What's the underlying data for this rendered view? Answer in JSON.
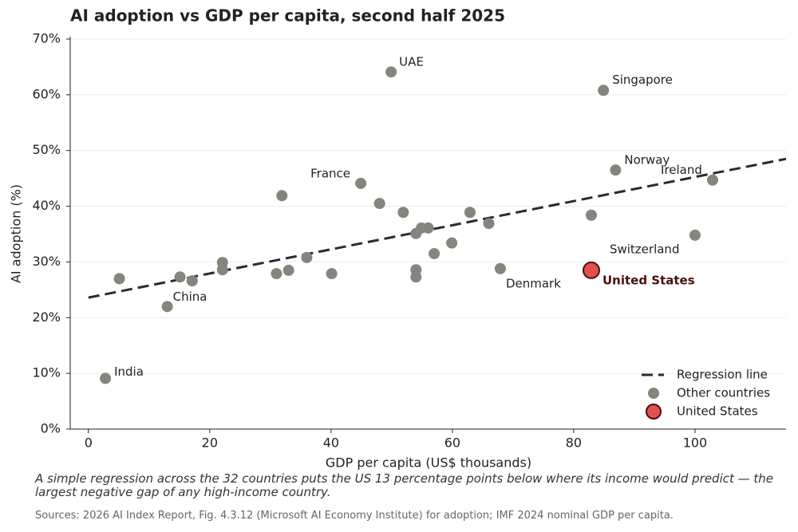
{
  "chart_data": {
    "type": "scatter",
    "title": "AI adoption vs GDP per capita, second half 2025",
    "x_label": "GDP per capita (US$ thousands)",
    "y_label": "AI adoption (%)",
    "xlim": [
      -3,
      115
    ],
    "ylim": [
      0,
      70
    ],
    "xticks": [
      0,
      20,
      40,
      60,
      80,
      100
    ],
    "yticks": [
      {
        "value": 0,
        "label": "0%"
      },
      {
        "value": 10,
        "label": "10%"
      },
      {
        "value": 20,
        "label": "20%"
      },
      {
        "value": 30,
        "label": "30%"
      },
      {
        "value": 40,
        "label": "40%"
      },
      {
        "value": 50,
        "label": "50%"
      },
      {
        "value": 60,
        "label": "60%"
      },
      {
        "value": 70,
        "label": "70%"
      }
    ],
    "grid": true,
    "legend": "lower right",
    "series": [
      {
        "name": "Regression line",
        "type": "line",
        "style": "dashed",
        "color": "#2b2b2b",
        "x": [
          0,
          115
        ],
        "y": [
          23.6,
          48.5
        ]
      },
      {
        "name": "Other countries",
        "color": "#85847d",
        "x": [
          2.8,
          5.1,
          13.0,
          15.1,
          17.1,
          22.1,
          22.1,
          31.0,
          33.0,
          31.9,
          36.0,
          40.1,
          44.9,
          48.0,
          49.9,
          51.9,
          54.0,
          54.9,
          56.0,
          54.0,
          54.0,
          57.0,
          59.9,
          62.9,
          66.0,
          67.9,
          82.9,
          84.9,
          86.9,
          100,
          102.9
        ],
        "y": [
          9.1,
          27.0,
          22.0,
          27.3,
          26.6,
          29.9,
          28.6,
          27.9,
          28.5,
          41.9,
          30.8,
          27.9,
          44.1,
          40.5,
          64.1,
          38.9,
          35.1,
          36.1,
          36.1,
          28.6,
          27.3,
          31.5,
          33.4,
          38.9,
          36.9,
          28.8,
          38.4,
          60.8,
          46.5,
          34.8,
          44.7
        ],
        "labels": [
          "India",
          null,
          "China",
          null,
          null,
          null,
          null,
          null,
          null,
          null,
          null,
          null,
          "France",
          null,
          "UAE",
          null,
          null,
          null,
          null,
          null,
          null,
          null,
          null,
          null,
          null,
          "Denmark",
          null,
          "Singapore",
          "Norway",
          "Switzerland",
          "Ireland"
        ]
      },
      {
        "name": "United States",
        "color": "#e05050",
        "edgecolor": "#4a0f0f",
        "x": [
          82.9
        ],
        "y": [
          28.5
        ]
      }
    ]
  },
  "caption": "A simple regression across the 32 countries puts the US 13 percentage points below where its income would predict — the largest negative gap of any high-income country.",
  "source": "Sources: 2026 AI Index Report, Fig. 4.3.12 (Microsoft AI Economy Institute) for adoption; IMF 2024 nominal GDP per capita."
}
